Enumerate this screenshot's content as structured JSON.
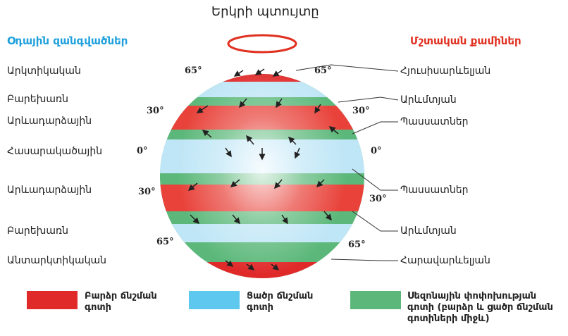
{
  "title": "Երկրի պտույտը",
  "air_masses": {
    "title": "Օդային զանգվածներ",
    "labels": [
      "Արկտիկական",
      "Բարեխառն",
      "Արևադարձային",
      "Հասարակածային",
      "Արևադարձային",
      "Բարեխառն",
      "Անտարկտիկական"
    ]
  },
  "winds": {
    "title": "Մշտական քամիներ",
    "labels": [
      "Հյուսիսարևելյան",
      "Արևմտյան",
      "Պասսատներ",
      "Պասսատներ",
      "Արևմտյան",
      "Հարավարևելյան"
    ]
  },
  "latitudes": [
    "65°",
    "65°",
    "30°",
    "30°",
    "0°",
    "0°",
    "30°",
    "30°",
    "65°",
    "65°"
  ],
  "legend": [
    "Բարձր ճնշման գոտի",
    "Ցածր ճնշման գոտի",
    "Սեզոնային փոփոխության գոտի (բարձր և ցածր ճնշման գոտիների միջև)"
  ]
}
